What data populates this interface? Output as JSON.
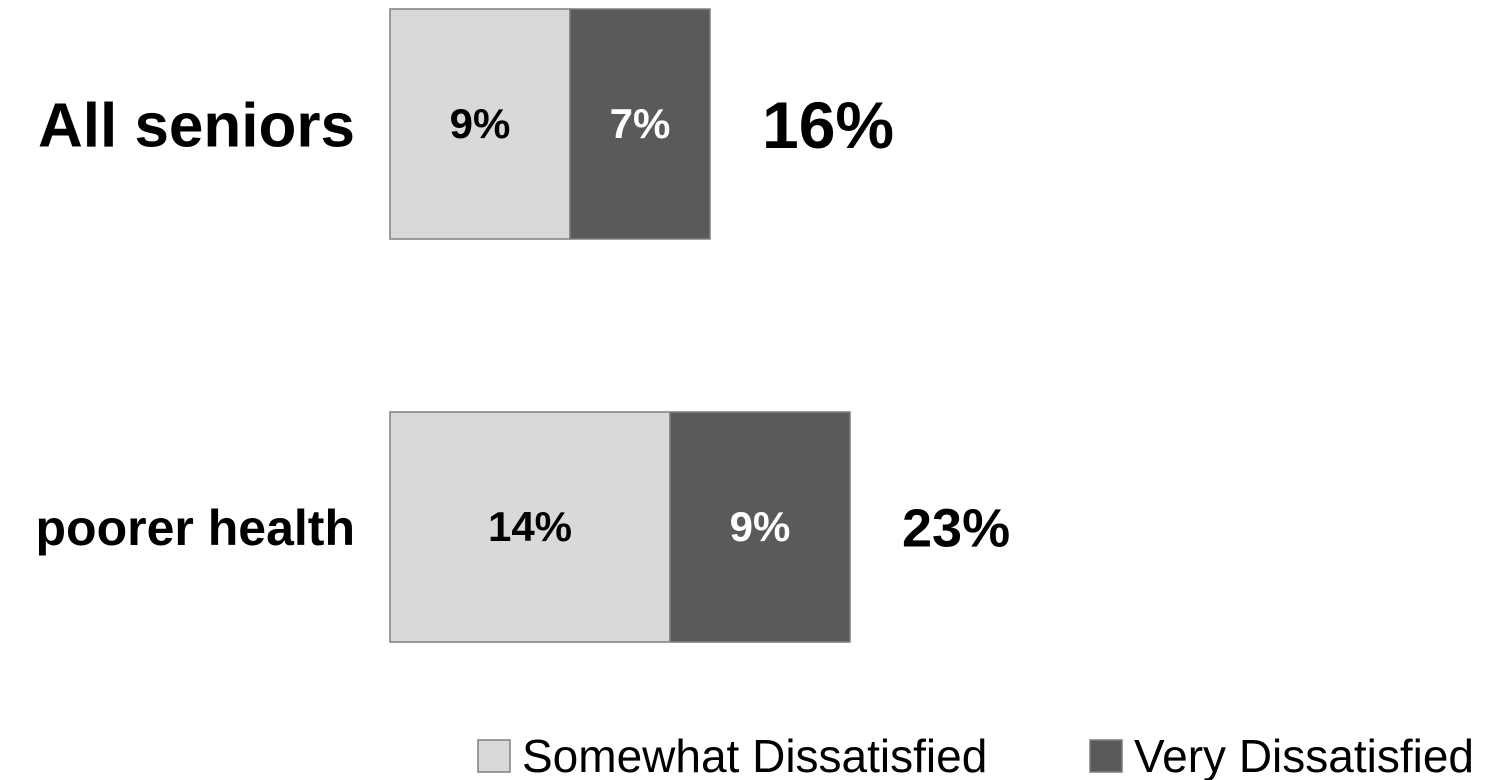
{
  "chart_data": {
    "type": "bar",
    "orientation": "horizontal",
    "stacked": true,
    "categories": [
      "All seniors",
      "poorer health"
    ],
    "series": [
      {
        "name": "Somewhat Dissatisfied",
        "values": [
          9,
          14
        ],
        "labels": [
          "9%",
          "14%"
        ],
        "color": "#d9d9d9",
        "label_color": "#000000"
      },
      {
        "name": "Very Dissatisfied",
        "values": [
          7,
          9
        ],
        "labels": [
          "7%",
          "9%"
        ],
        "color": "#5a5a5a",
        "label_color": "#ffffff"
      }
    ],
    "totals": [
      "16%",
      "23%"
    ],
    "title": "",
    "xlabel": "",
    "ylabel": "",
    "xlim": [
      0,
      23
    ],
    "grid": false,
    "legend": "bottom-right"
  }
}
